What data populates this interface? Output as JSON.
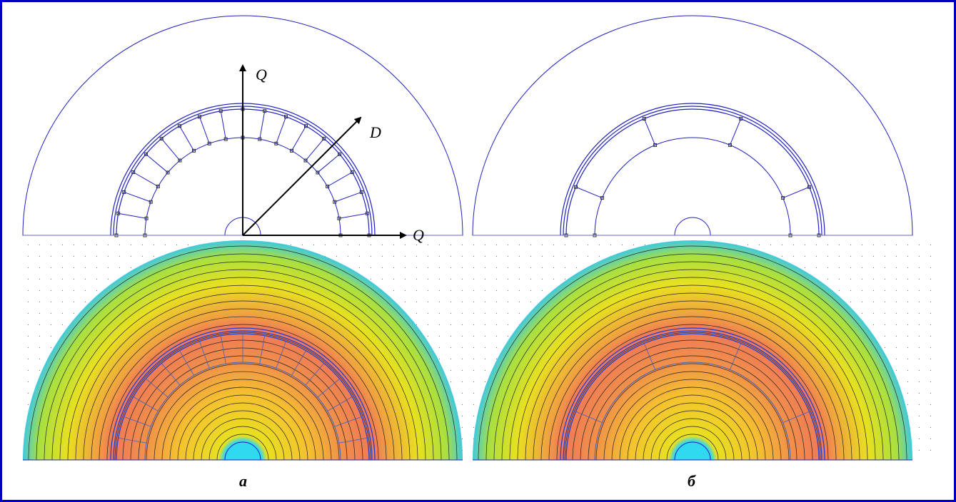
{
  "figure": {
    "axis_labels": [
      "Q",
      "D",
      "Q"
    ],
    "captions": [
      "а",
      "б"
    ]
  }
}
